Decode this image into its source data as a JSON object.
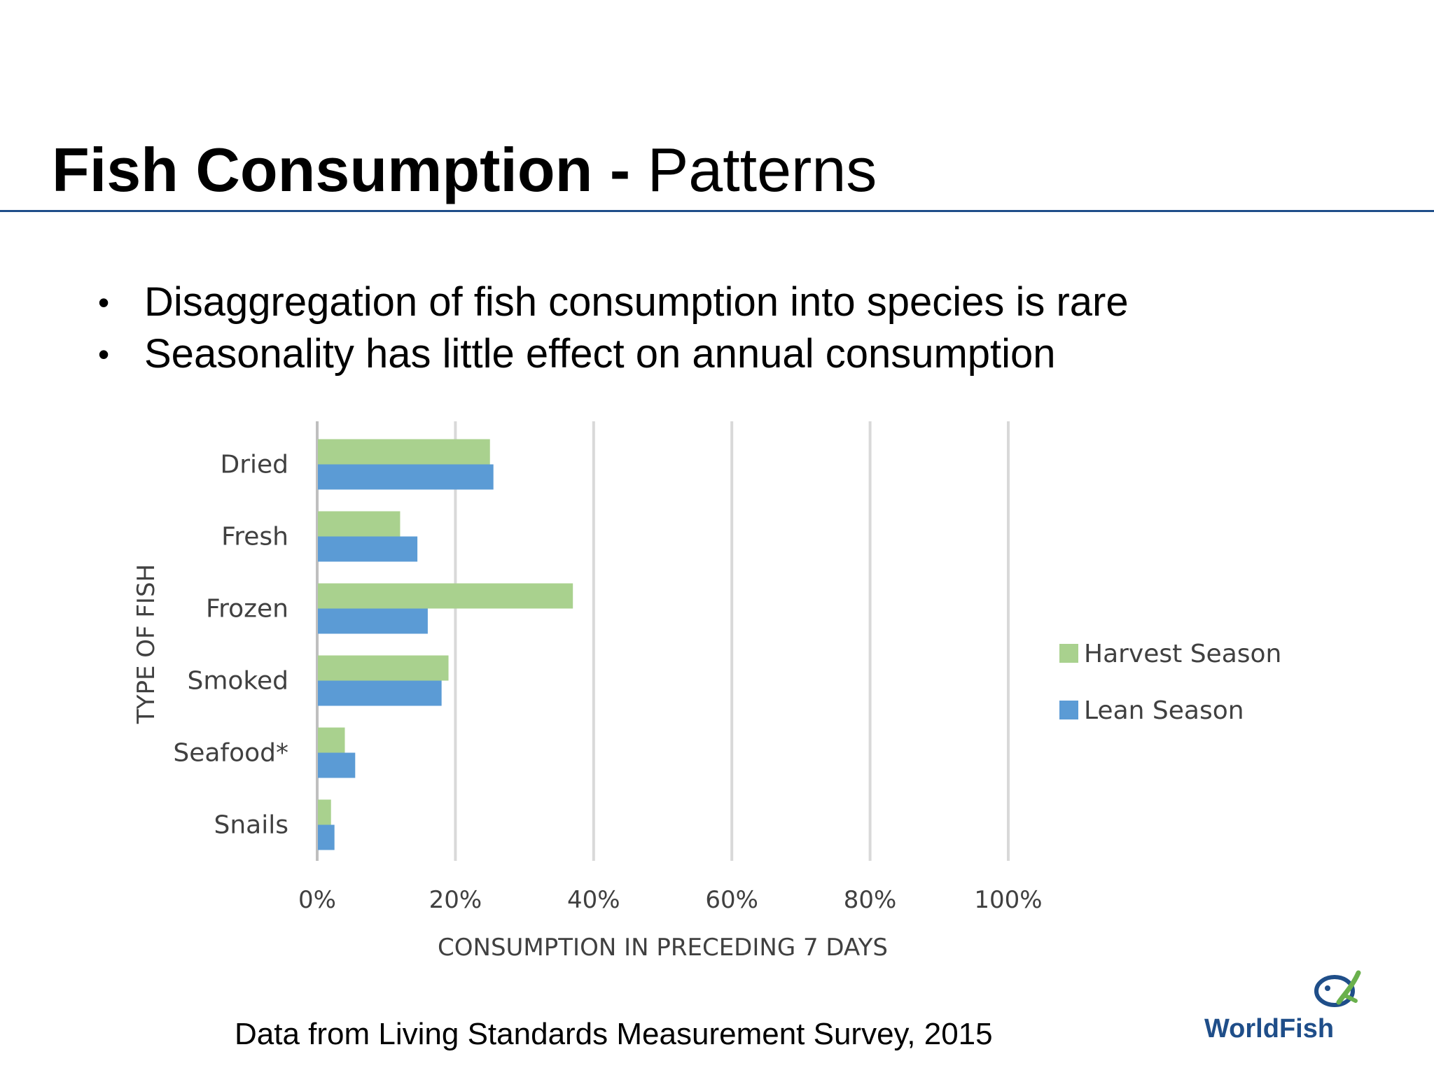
{
  "slide": {
    "title_bold": "Fish Consumption -",
    "title_regular": "Patterns",
    "bullets": [
      "Disaggregation of fish consumption into species is rare",
      "Seasonality has little effect on annual consumption"
    ],
    "source": "Data from Living Standards Measurement Survey, 2015",
    "logo_text": "WorldFish",
    "rule_color": "#1f4e89"
  },
  "chart_data": {
    "type": "bar",
    "orientation": "horizontal",
    "categories": [
      "Dried",
      "Fresh",
      "Frozen",
      "Smoked",
      "Seafood*",
      "Snails"
    ],
    "series": [
      {
        "name": "Harvest Season",
        "color": "#a9d18e",
        "values": [
          25,
          12,
          37,
          19,
          4,
          2
        ]
      },
      {
        "name": "Lean Season",
        "color": "#5b9bd5",
        "values": [
          25.5,
          14.5,
          16,
          18,
          5.5,
          2.5
        ]
      }
    ],
    "xlim": [
      0,
      100
    ],
    "xticks": [
      "0%",
      "20%",
      "40%",
      "60%",
      "80%",
      "100%"
    ],
    "xlabel": "CONSUMPTION IN PRECEDING  7 DAYS",
    "ylabel": "TYPE OF FISH",
    "grid": true,
    "legend_position": "right"
  }
}
